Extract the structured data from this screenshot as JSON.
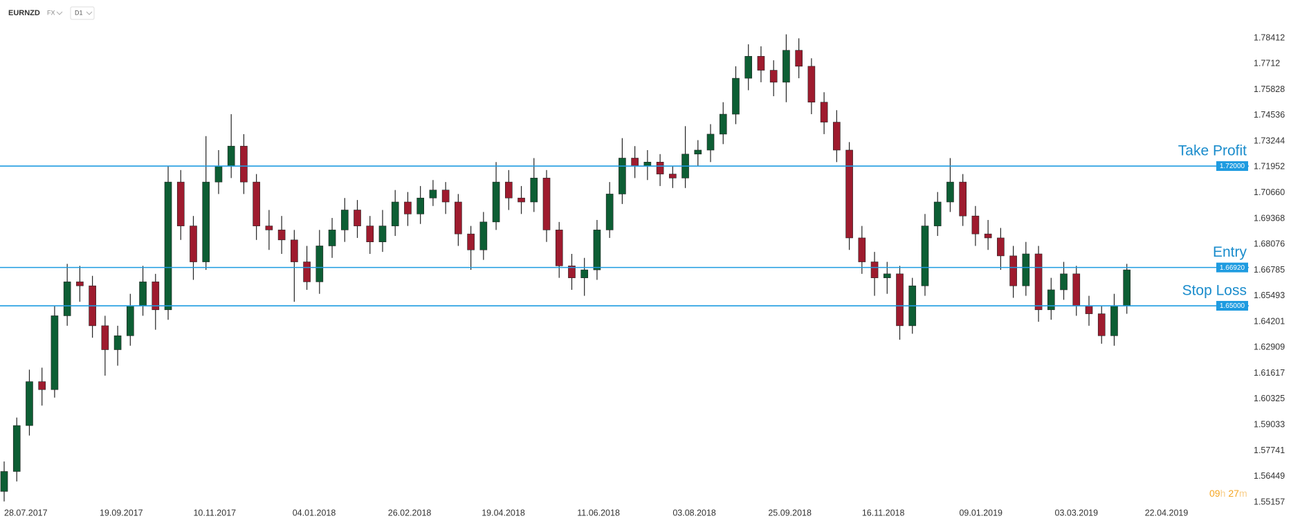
{
  "header": {
    "symbol": "EURNZD",
    "market": "FX",
    "timeframe": "D1"
  },
  "countdown": {
    "hours": "09",
    "h_unit": "h",
    "minutes": "27",
    "m_unit": "m"
  },
  "chart_data": {
    "type": "candlestick",
    "x": [
      "28.07.2017",
      "04.08.2017",
      "11.08.2017",
      "18.08.2017",
      "25.08.2017",
      "01.09.2017",
      "08.09.2017",
      "15.09.2017",
      "22.09.2017",
      "29.09.2017",
      "06.10.2017",
      "13.10.2017",
      "20.10.2017",
      "27.10.2017",
      "03.11.2017",
      "10.11.2017",
      "17.11.2017",
      "24.11.2017",
      "01.12.2017",
      "08.12.2017",
      "15.12.2017",
      "22.12.2017",
      "29.12.2017",
      "05.01.2018",
      "12.01.2018",
      "19.01.2018",
      "26.01.2018",
      "02.02.2018",
      "09.02.2018",
      "16.02.2018",
      "23.02.2018",
      "02.03.2018",
      "09.03.2018",
      "16.03.2018",
      "23.03.2018",
      "30.03.2018",
      "06.04.2018",
      "13.04.2018",
      "20.04.2018",
      "27.04.2018",
      "04.05.2018",
      "11.05.2018",
      "18.05.2018",
      "25.05.2018",
      "01.06.2018",
      "08.06.2018",
      "15.06.2018",
      "22.06.2018",
      "29.06.2018",
      "06.07.2018",
      "13.07.2018",
      "20.07.2018",
      "27.07.2018",
      "03.08.2018",
      "10.08.2018",
      "17.08.2018",
      "24.08.2018",
      "31.08.2018",
      "07.09.2018",
      "14.09.2018",
      "21.09.2018",
      "28.09.2018",
      "05.10.2018",
      "12.10.2018",
      "19.10.2018",
      "26.10.2018",
      "02.11.2018",
      "09.11.2018",
      "16.11.2018",
      "23.11.2018",
      "30.11.2018",
      "07.12.2018",
      "14.12.2018",
      "21.12.2018",
      "28.12.2018",
      "04.01.2019",
      "11.01.2019",
      "18.01.2019",
      "25.01.2019",
      "01.02.2019",
      "08.02.2019",
      "15.02.2019",
      "22.02.2019",
      "01.03.2019",
      "08.03.2019",
      "15.03.2019",
      "22.03.2019",
      "29.03.2019",
      "05.04.2019",
      "12.04.2019"
    ],
    "open": [
      1.557,
      1.567,
      1.59,
      1.612,
      1.608,
      1.645,
      1.662,
      1.66,
      1.64,
      1.628,
      1.635,
      1.65,
      1.662,
      1.648,
      1.712,
      1.69,
      1.672,
      1.712,
      1.72,
      1.73,
      1.712,
      1.69,
      1.688,
      1.683,
      1.672,
      1.662,
      1.68,
      1.688,
      1.698,
      1.69,
      1.682,
      1.69,
      1.702,
      1.696,
      1.704,
      1.708,
      1.702,
      1.686,
      1.678,
      1.692,
      1.712,
      1.704,
      1.702,
      1.714,
      1.688,
      1.67,
      1.664,
      1.668,
      1.688,
      1.706,
      1.724,
      1.72,
      1.722,
      1.716,
      1.714,
      1.726,
      1.728,
      1.736,
      1.746,
      1.764,
      1.775,
      1.768,
      1.762,
      1.778,
      1.77,
      1.752,
      1.742,
      1.728,
      1.684,
      1.672,
      1.664,
      1.666,
      1.64,
      1.66,
      1.69,
      1.702,
      1.712,
      1.695,
      1.686,
      1.684,
      1.675,
      1.66,
      1.676,
      1.648,
      1.658,
      1.666,
      1.65,
      1.646,
      1.635,
      1.65
    ],
    "high": [
      1.572,
      1.594,
      1.618,
      1.619,
      1.65,
      1.671,
      1.67,
      1.665,
      1.645,
      1.64,
      1.656,
      1.67,
      1.666,
      1.72,
      1.718,
      1.695,
      1.735,
      1.728,
      1.746,
      1.736,
      1.716,
      1.698,
      1.695,
      1.688,
      1.68,
      1.688,
      1.694,
      1.704,
      1.703,
      1.695,
      1.698,
      1.708,
      1.707,
      1.71,
      1.713,
      1.712,
      1.706,
      1.69,
      1.697,
      1.722,
      1.718,
      1.71,
      1.724,
      1.718,
      1.692,
      1.676,
      1.674,
      1.693,
      1.712,
      1.734,
      1.73,
      1.728,
      1.726,
      1.72,
      1.74,
      1.733,
      1.741,
      1.752,
      1.77,
      1.781,
      1.78,
      1.773,
      1.786,
      1.784,
      1.774,
      1.757,
      1.748,
      1.732,
      1.69,
      1.677,
      1.672,
      1.67,
      1.664,
      1.696,
      1.707,
      1.724,
      1.716,
      1.7,
      1.693,
      1.689,
      1.68,
      1.682,
      1.68,
      1.664,
      1.672,
      1.67,
      1.655,
      1.65,
      1.656,
      1.671
    ],
    "low": [
      1.552,
      1.562,
      1.585,
      1.6,
      1.604,
      1.64,
      1.652,
      1.634,
      1.615,
      1.62,
      1.63,
      1.645,
      1.638,
      1.643,
      1.683,
      1.663,
      1.668,
      1.706,
      1.714,
      1.706,
      1.683,
      1.678,
      1.676,
      1.652,
      1.658,
      1.656,
      1.674,
      1.682,
      1.684,
      1.676,
      1.677,
      1.685,
      1.69,
      1.691,
      1.7,
      1.696,
      1.68,
      1.668,
      1.673,
      1.688,
      1.698,
      1.696,
      1.697,
      1.682,
      1.664,
      1.658,
      1.655,
      1.663,
      1.684,
      1.701,
      1.714,
      1.713,
      1.71,
      1.709,
      1.709,
      1.72,
      1.722,
      1.731,
      1.741,
      1.758,
      1.762,
      1.755,
      1.752,
      1.764,
      1.746,
      1.736,
      1.722,
      1.678,
      1.666,
      1.655,
      1.656,
      1.633,
      1.636,
      1.655,
      1.685,
      1.697,
      1.69,
      1.68,
      1.678,
      1.668,
      1.654,
      1.655,
      1.642,
      1.643,
      1.653,
      1.645,
      1.64,
      1.631,
      1.63,
      1.646
    ],
    "close": [
      1.567,
      1.59,
      1.612,
      1.608,
      1.645,
      1.662,
      1.66,
      1.64,
      1.628,
      1.635,
      1.65,
      1.662,
      1.648,
      1.712,
      1.69,
      1.672,
      1.712,
      1.72,
      1.73,
      1.712,
      1.69,
      1.688,
      1.683,
      1.672,
      1.662,
      1.68,
      1.688,
      1.698,
      1.69,
      1.682,
      1.69,
      1.702,
      1.696,
      1.704,
      1.708,
      1.702,
      1.686,
      1.678,
      1.692,
      1.712,
      1.704,
      1.702,
      1.714,
      1.688,
      1.67,
      1.664,
      1.668,
      1.688,
      1.706,
      1.724,
      1.72,
      1.722,
      1.716,
      1.714,
      1.726,
      1.728,
      1.736,
      1.746,
      1.764,
      1.775,
      1.768,
      1.762,
      1.778,
      1.77,
      1.752,
      1.742,
      1.728,
      1.684,
      1.672,
      1.664,
      1.666,
      1.64,
      1.66,
      1.69,
      1.702,
      1.712,
      1.695,
      1.686,
      1.684,
      1.675,
      1.66,
      1.676,
      1.648,
      1.658,
      1.666,
      1.65,
      1.646,
      1.635,
      1.65,
      1.668
    ],
    "up_color": "#0d5e34",
    "down_color": "#9e1b2e",
    "xlim": [
      "28.07.2017",
      "16.06.2019"
    ],
    "xticks": [
      "28.07.2017",
      "19.09.2017",
      "10.11.2017",
      "04.01.2018",
      "26.02.2018",
      "19.04.2018",
      "11.06.2018",
      "03.08.2018",
      "25.09.2018",
      "16.11.2018",
      "09.01.2019",
      "03.03.2019",
      "22.04.2019"
    ],
    "ylim": [
      1.5495,
      1.8032
    ],
    "yticks": [
      1.55157,
      1.56449,
      1.57741,
      1.59033,
      1.60325,
      1.61617,
      1.62909,
      1.64201,
      1.65493,
      1.66785,
      1.68076,
      1.69368,
      {
        "value": 1.7066,
        "label": "1.70660"
      },
      1.71952,
      1.73244,
      1.74536,
      1.75828,
      1.7712,
      1.78412
    ],
    "grid": false,
    "levels": {
      "names": [
        "Take Profit",
        "Entry",
        "Stop Loss"
      ],
      "values": [
        1.72,
        1.6692,
        1.65
      ],
      "value_labels": [
        "1.72000",
        "1.66920",
        "1.65000"
      ],
      "color": "#1e9be0"
    }
  }
}
